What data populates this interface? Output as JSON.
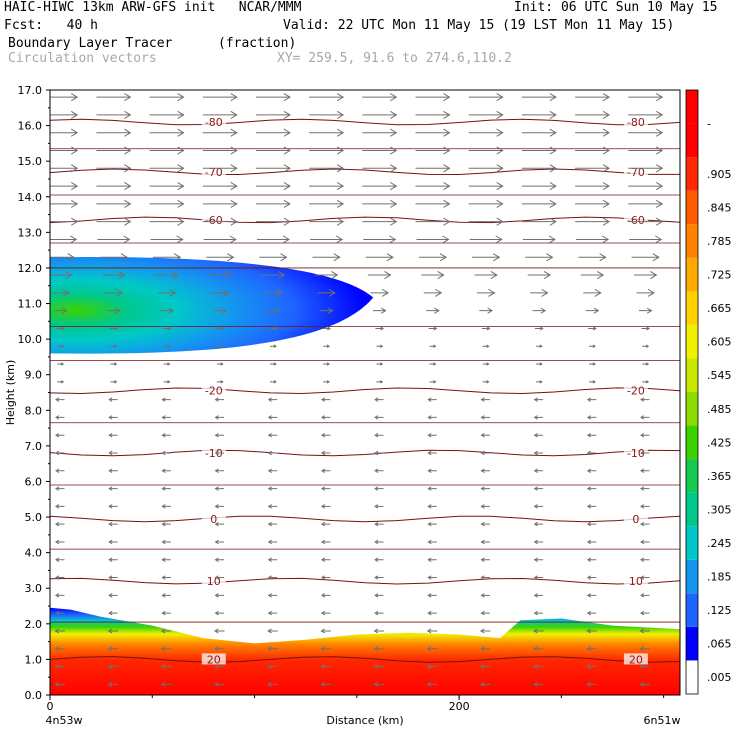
{
  "header": {
    "line1_left": "HAIC-HIWC 13km ARW-GFS init   NCAR/MMM",
    "line1_right": "Init: 06 UTC Sun 10 May 15",
    "line2_left": "Fcst:   40 h",
    "line2_right": "Valid: 22 UTC Mon 11 May 15 (19 LST Mon 11 May 15)",
    "line3_left": "Boundary Layer Tracer",
    "line3_units": "(fraction)",
    "line4_left": "Circulation vectors",
    "line4_coords": "XY= 259.5, 91.6 to 274.6,110.2"
  },
  "chart_data": {
    "type": "heatmap",
    "xlabel": "Distance (km)",
    "ylabel": "Height (km)",
    "xlim": [
      0,
      308
    ],
    "ylim": [
      0,
      17
    ],
    "x_tick_labels": [
      {
        "x": 0,
        "label": "0"
      },
      {
        "x": 200,
        "label": "200"
      }
    ],
    "x_endpoint_labels": {
      "left": "4n53w",
      "right": "6n51w"
    },
    "y_ticks": [
      "0.0",
      "1.0",
      "2.0",
      "3.0",
      "4.0",
      "5.0",
      "6.0",
      "7.0",
      "8.0",
      "9.0",
      "10.0",
      "11.0",
      "12.0",
      "13.0",
      "14.0",
      "15.0",
      "16.0",
      "17.0"
    ],
    "tracer_fraction_colorbar": [
      ".005",
      ".065",
      ".125",
      ".185",
      ".245",
      ".305",
      ".365",
      ".425",
      ".485",
      ".545",
      ".605",
      ".665",
      ".725",
      ".785",
      ".845",
      ".905",
      "-"
    ],
    "colorbar_colors": [
      "#ffffff",
      "#0000ff",
      "#1e64ff",
      "#1496f0",
      "#00c8c8",
      "#00c88c",
      "#14c850",
      "#3cd200",
      "#8cdc00",
      "#c8e600",
      "#f0f000",
      "#ffd200",
      "#ffaa00",
      "#ff8200",
      "#ff5a00",
      "#ff2800",
      "#ff0000",
      "#ff0000"
    ],
    "boundary_layer_top_km": [
      {
        "x": 0,
        "y": 2.45
      },
      {
        "x": 10,
        "y": 2.4
      },
      {
        "x": 25,
        "y": 2.2
      },
      {
        "x": 50,
        "y": 1.95
      },
      {
        "x": 75,
        "y": 1.6
      },
      {
        "x": 100,
        "y": 1.45
      },
      {
        "x": 125,
        "y": 1.55
      },
      {
        "x": 150,
        "y": 1.7
      },
      {
        "x": 175,
        "y": 1.75
      },
      {
        "x": 200,
        "y": 1.7
      },
      {
        "x": 220,
        "y": 1.6
      },
      {
        "x": 230,
        "y": 2.1
      },
      {
        "x": 250,
        "y": 2.15
      },
      {
        "x": 275,
        "y": 1.95
      },
      {
        "x": 308,
        "y": 1.85
      }
    ],
    "upper_plume": {
      "x_start": 0,
      "x_end": 158,
      "bottom_km": 9.6,
      "top_km": 12.3,
      "core_km": 11.0
    },
    "temperature_contours_C": [
      {
        "value": 20,
        "label": "20",
        "height_km": 1.0
      },
      {
        "value": 10,
        "label": "10",
        "height_km": 3.2
      },
      {
        "value": 0,
        "label": "0",
        "height_km": 4.95
      },
      {
        "value": -10,
        "label": "-10",
        "height_km": 6.8
      },
      {
        "value": -20,
        "label": "-20",
        "height_km": 8.55
      },
      {
        "value": -60,
        "label": "-60",
        "height_km": 13.35
      },
      {
        "value": -70,
        "label": "-70",
        "height_km": 14.7
      },
      {
        "value": -80,
        "label": "-80",
        "height_km": 16.1
      }
    ],
    "vectors_note": "westerly flow aloft above ~10 km, weak easterly below"
  }
}
